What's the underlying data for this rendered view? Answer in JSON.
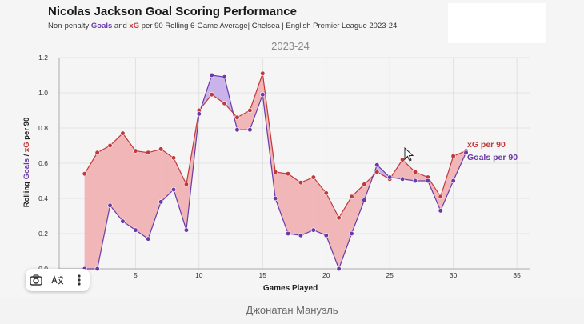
{
  "header": {
    "title": "Nicolas Jackson Goal Scoring Performance",
    "subtitle_pre": "Non-penalty ",
    "subtitle_goals": "Goals",
    "subtitle_and": " and ",
    "subtitle_xg": "xG",
    "subtitle_post": " per 90 Rolling 6-Game Average| Chelsea | English Premier League 2023-24"
  },
  "caption": "Джонатан Мануэль",
  "toolbar": {
    "icons": [
      "camera-icon",
      "translate-icon",
      "more-vertical-icon"
    ]
  },
  "chart_data": {
    "type": "line",
    "title": "2023-24",
    "xlabel": "Games Played",
    "ylabel_pre": "Rolling ",
    "ylabel_goals": "Goals",
    "ylabel_mid": " / ",
    "ylabel_xg": "xG",
    "ylabel_post": " per 90",
    "xlim": [
      -1,
      36
    ],
    "ylim": [
      0,
      1.2
    ],
    "xticks": [
      5,
      10,
      15,
      20,
      25,
      30,
      35
    ],
    "yticks": [
      0.0,
      0.2,
      0.4,
      0.6,
      0.8,
      1.0,
      1.2
    ],
    "ytick_labels": [
      "0.0",
      "0.2",
      "0.4",
      "0.6",
      "0.8",
      "1.0",
      "1.2"
    ],
    "grid": true,
    "x": [
      1,
      2,
      3,
      4,
      5,
      6,
      7,
      8,
      9,
      10,
      11,
      12,
      13,
      14,
      15,
      16,
      17,
      18,
      19,
      20,
      21,
      22,
      23,
      24,
      25,
      26,
      27,
      28,
      29,
      30,
      31
    ],
    "series": [
      {
        "name": "xG per 90",
        "color": "#c0393b",
        "values": [
          0.54,
          0.66,
          0.7,
          0.77,
          0.67,
          0.66,
          0.68,
          0.63,
          0.48,
          0.9,
          0.99,
          0.94,
          0.86,
          0.9,
          1.11,
          0.55,
          0.54,
          0.49,
          0.52,
          0.43,
          0.29,
          0.41,
          0.48,
          0.55,
          0.51,
          0.62,
          0.55,
          0.52,
          0.41,
          0.64,
          0.67
        ]
      },
      {
        "name": "Goals per 90",
        "color": "#6a3aa8",
        "values": [
          0.0,
          0.0,
          0.36,
          0.27,
          0.22,
          0.17,
          0.38,
          0.45,
          0.22,
          0.88,
          1.1,
          1.09,
          0.79,
          0.79,
          0.99,
          0.4,
          0.2,
          0.19,
          0.22,
          0.19,
          0.0,
          0.2,
          0.39,
          0.59,
          0.52,
          0.51,
          0.5,
          0.5,
          0.33,
          0.5,
          0.66
        ]
      }
    ],
    "fill_colors": {
      "xg_above": "#f1b6b8",
      "goals_above": "#c9b3ea"
    }
  }
}
